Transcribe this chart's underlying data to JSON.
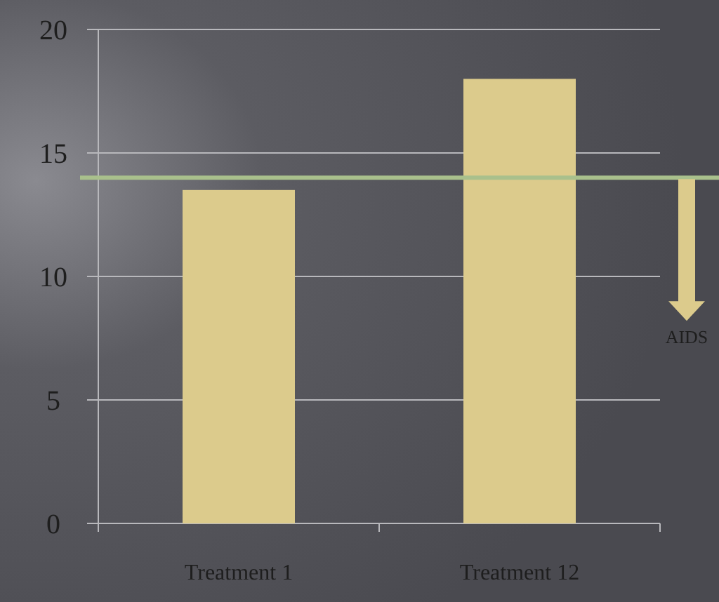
{
  "chart_data": {
    "type": "bar",
    "categories": [
      "Treatment 1",
      "Treatment 12"
    ],
    "values": [
      13.5,
      18
    ],
    "color": "#dccb8c",
    "ylim": [
      0,
      20
    ],
    "yticks": [
      0,
      5,
      10,
      15,
      20
    ],
    "grid": "y",
    "ref_lines": [
      {
        "axis": "y",
        "value": 14,
        "color": "#a9c08c"
      }
    ],
    "annotations": [
      "AIDS"
    ]
  }
}
